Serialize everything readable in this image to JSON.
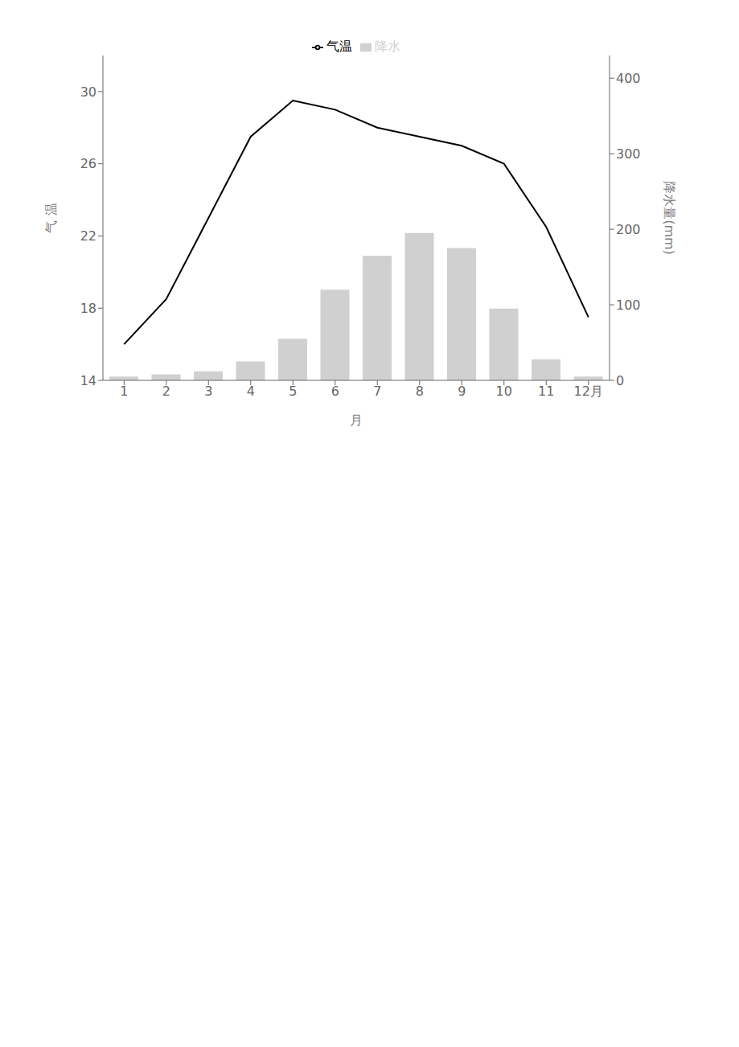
{
  "chart_data": {
    "type": "bar",
    "categories": [
      "1",
      "2",
      "3",
      "4",
      "5",
      "6",
      "7",
      "8",
      "9",
      "10",
      "11",
      "12月"
    ],
    "x_label": "月",
    "y_label": "气  温",
    "y2_label": "降水量(mm)",
    "ylim": [
      14,
      32
    ],
    "yticks": [
      14,
      18,
      22,
      26,
      30
    ],
    "y2lim": [
      0,
      430
    ],
    "y2ticks": [
      0,
      100,
      200,
      300,
      400
    ],
    "legend": "top",
    "grid": false,
    "series": [
      {
        "name": "气温",
        "type": "line",
        "color": "#000000",
        "values": [
          16.0,
          18.5,
          23.0,
          27.5,
          29.5,
          29.0,
          28.0,
          27.5,
          27.0,
          26.0,
          22.5,
          17.5
        ]
      },
      {
        "name": "降水",
        "type": "bar",
        "axis": "y2",
        "color": "#d0d0d0",
        "values": [
          5,
          8,
          12,
          25,
          55,
          120,
          165,
          195,
          175,
          95,
          28,
          5
        ]
      }
    ]
  }
}
